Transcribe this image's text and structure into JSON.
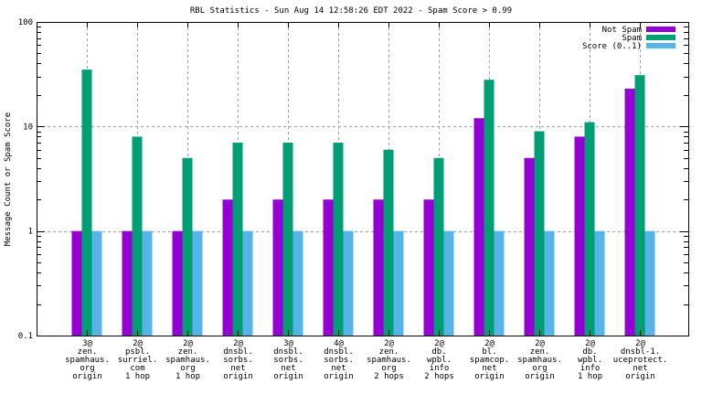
{
  "chart_data": {
    "type": "bar",
    "title": "RBL Statistics - Sun Aug 14 12:58:26 EDT 2022 - Spam Score > 0.99",
    "xlabel": "",
    "ylabel": "Message Count or Spam Score",
    "yscale": "log",
    "ylim": [
      0.1,
      100
    ],
    "yticks": [
      {
        "value": 0.1,
        "label": "0.1"
      },
      {
        "value": 1,
        "label": "1"
      },
      {
        "value": 10,
        "label": "10"
      },
      {
        "value": 100,
        "label": "100"
      }
    ],
    "grid": true,
    "legend_position": "top-right",
    "categories": [
      [
        "3@",
        "zen.",
        "spamhaus.",
        "org",
        "origin"
      ],
      [
        "2@",
        "psbl.",
        "surriel.",
        "com",
        "1 hop"
      ],
      [
        "2@",
        "zen.",
        "spamhaus.",
        "org",
        "1 hop"
      ],
      [
        "2@",
        "dnsbl.",
        "sorbs.",
        "net",
        "origin"
      ],
      [
        "3@",
        "dnsbl.",
        "sorbs.",
        "net",
        "origin"
      ],
      [
        "4@",
        "dnsbl.",
        "sorbs.",
        "net",
        "origin"
      ],
      [
        "2@",
        "zen.",
        "spamhaus.",
        "org",
        "2 hops"
      ],
      [
        "2@",
        "db.",
        "wpbl.",
        "info",
        "2 hops"
      ],
      [
        "2@",
        "bl.",
        "spamcop.",
        "net",
        "origin"
      ],
      [
        "2@",
        "zen.",
        "spamhaus.",
        "org",
        "origin"
      ],
      [
        "2@",
        "db.",
        "wpbl.",
        "info",
        "1 hop"
      ],
      [
        "2@",
        "dnsbl-1.",
        "uceprotect.",
        "net",
        "origin"
      ]
    ],
    "series": [
      {
        "name": "Not Spam",
        "color": "#9400d3",
        "values": [
          1,
          1,
          1,
          2,
          2,
          2,
          2,
          2,
          12,
          5,
          8,
          23
        ]
      },
      {
        "name": "Spam",
        "color": "#009e73",
        "values": [
          35,
          8,
          5,
          7,
          7,
          7,
          6,
          5,
          28,
          9,
          11,
          31
        ]
      },
      {
        "name": "Score (0..1)",
        "color": "#56b4e9",
        "values": [
          1,
          1,
          1,
          1,
          1,
          1,
          1,
          1,
          1,
          1,
          1,
          1
        ]
      }
    ]
  }
}
